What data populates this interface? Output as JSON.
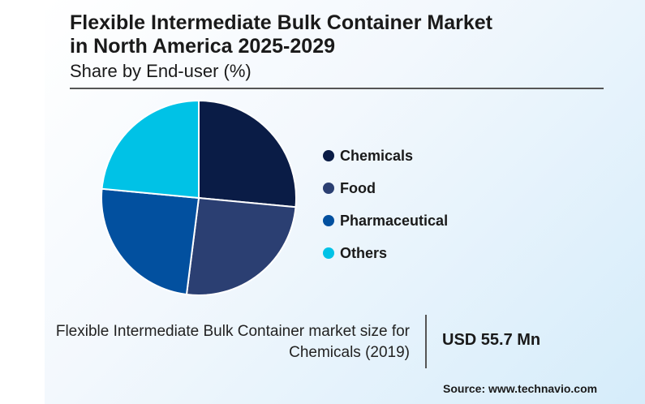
{
  "header": {
    "title_line1": "Flexible Intermediate Bulk Container Market",
    "title_line2": "in North America 2025-2029",
    "subtitle": "Share by End-user (%)"
  },
  "chart_data": {
    "type": "pie",
    "title": "Flexible Intermediate Bulk Container Market in North America 2025-2029",
    "subtitle": "Share by End-user (%)",
    "categories": [
      "Chemicals",
      "Food",
      "Pharmaceutical",
      "Others"
    ],
    "values": [
      26.5,
      25.5,
      24.5,
      23.5
    ],
    "colors": [
      "#0a1c46",
      "#2b3f72",
      "#02509f",
      "#00c2e6"
    ],
    "start_angle_deg": 0,
    "direction": "clockwise",
    "legend_position": "right"
  },
  "legend": {
    "items": [
      {
        "label": "Chemicals",
        "color": "#0a1c46"
      },
      {
        "label": "Food",
        "color": "#2b3f72"
      },
      {
        "label": "Pharmaceutical",
        "color": "#02509f"
      },
      {
        "label": "Others",
        "color": "#00c2e6"
      }
    ]
  },
  "kpi": {
    "label_line1": "Flexible Intermediate Bulk Container market size for",
    "label_line2": "Chemicals (2019)",
    "value": "USD 55.7 Mn"
  },
  "footer": {
    "source": "Source: www.technavio.com"
  }
}
